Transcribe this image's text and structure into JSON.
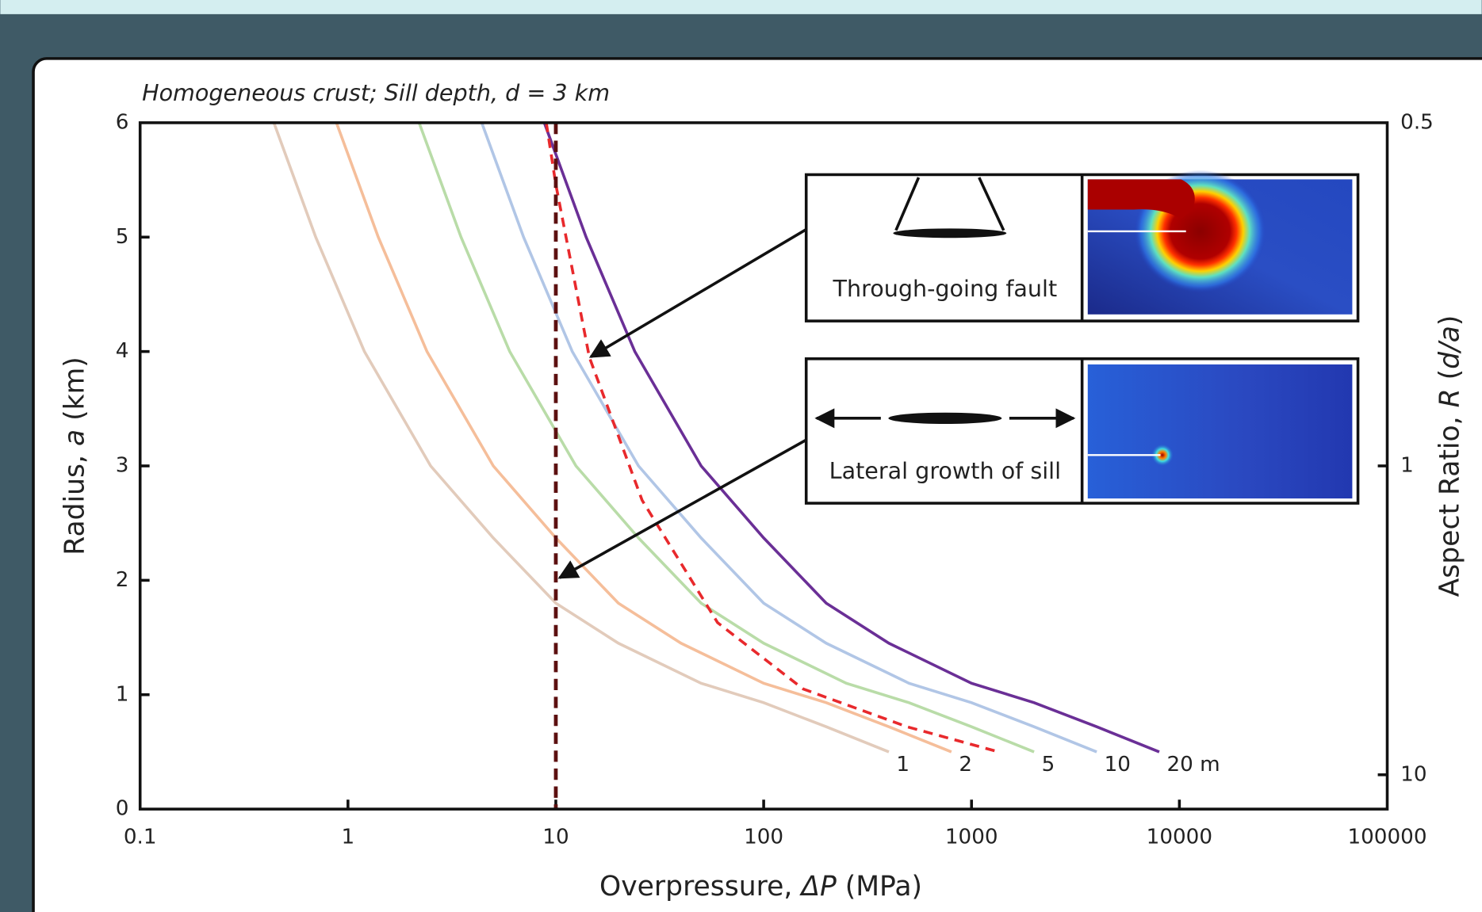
{
  "chart_data": {
    "type": "line",
    "title": "Homogeneous crust; Sill depth, d = 3 km",
    "xlabel": [
      "Overpressure, ",
      "ΔP",
      " (MPa)"
    ],
    "ylabel": [
      "Radius, ",
      "a",
      " (km)"
    ],
    "y2label": [
      "Aspect Ratio, ",
      "R",
      " (",
      "d/a",
      ")"
    ],
    "xscale": "log",
    "xlim": [
      0.1,
      100000
    ],
    "xticks": [
      0.1,
      1,
      10,
      100,
      1000,
      10000,
      100000
    ],
    "ylim": [
      0,
      6
    ],
    "yticks": [
      0,
      1,
      2,
      3,
      4,
      5,
      6
    ],
    "y2scale": "reciprocal",
    "y2lim": [
      null,
      0.5
    ],
    "y2ticks": [
      0.5,
      1,
      10
    ],
    "series": [
      {
        "name": "1",
        "color": "#e2cbbb",
        "style": "solid",
        "x": [
          0.44,
          0.7,
          1.2,
          2.5,
          5,
          10,
          20,
          50,
          100,
          200,
          400
        ],
        "values": [
          6,
          5,
          4,
          3,
          2.37,
          1.8,
          1.45,
          1.1,
          0.93,
          0.72,
          0.5
        ]
      },
      {
        "name": "2",
        "color": "#f5be9a",
        "style": "solid",
        "x": [
          0.88,
          1.4,
          2.4,
          5,
          10,
          20,
          40,
          100,
          200,
          400,
          800
        ],
        "values": [
          6,
          5,
          4,
          3,
          2.37,
          1.8,
          1.45,
          1.1,
          0.93,
          0.72,
          0.5
        ]
      },
      {
        "name": "5",
        "color": "#b9dca8",
        "style": "solid",
        "x": [
          2.2,
          3.5,
          6,
          12.5,
          25,
          50,
          100,
          250,
          500,
          1000,
          2000
        ],
        "values": [
          6,
          5,
          4,
          3,
          2.37,
          1.8,
          1.45,
          1.1,
          0.93,
          0.72,
          0.5
        ]
      },
      {
        "name": "10",
        "color": "#b1c6e6",
        "style": "solid",
        "x": [
          4.4,
          7,
          12,
          25,
          50,
          100,
          200,
          500,
          1000,
          2000,
          4000
        ],
        "values": [
          6,
          5,
          4,
          3,
          2.37,
          1.8,
          1.45,
          1.1,
          0.93,
          0.72,
          0.5
        ]
      },
      {
        "name": "20 m",
        "color": "#6a2f96",
        "style": "solid",
        "x": [
          8.8,
          14,
          24,
          50,
          100,
          200,
          400,
          1000,
          2000,
          4000,
          8000
        ],
        "values": [
          6,
          5,
          4,
          3,
          2.37,
          1.8,
          1.45,
          1.1,
          0.93,
          0.72,
          0.5
        ]
      },
      {
        "style": "dashed",
        "color": "#e8292c",
        "x": [
          9,
          10,
          14.5,
          26,
          60,
          155,
          490,
          1350
        ],
        "values": [
          6,
          5.46,
          3.95,
          2.7,
          1.63,
          1.05,
          0.72,
          0.5
        ]
      }
    ],
    "reference_line": {
      "x": 10,
      "color": "#5c1010"
    },
    "insets": [
      {
        "label": "Through-going fault"
      },
      {
        "label": "Lateral growth of sill"
      }
    ]
  }
}
